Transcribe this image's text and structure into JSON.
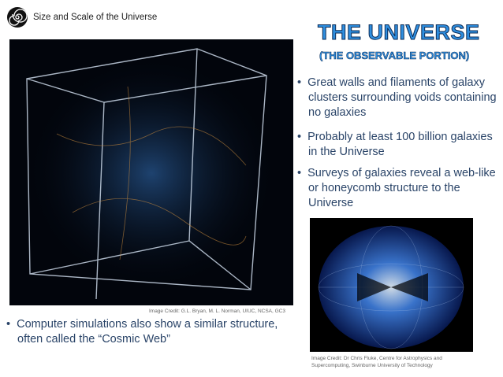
{
  "header": {
    "title": "Size and Scale of the Universe"
  },
  "title": "THE UNIVERSE",
  "subtitle": "(THE OBSERVABLE PORTION)",
  "right_bullets": [
    "Great walls and filaments of galaxy clusters surrounding voids containing no galaxies",
    "Probably at least 100 billion galaxies in the Universe",
    "Surveys of galaxies reveal a web-like or honeycomb structure to the Universe"
  ],
  "left_image": {
    "credit": "Image Credit: G.L. Bryan, M. L. Norman, UIUC, NCSA, GC3"
  },
  "left_bullet": "Computer simulations also show a similar structure, often called the “Cosmic Web”",
  "right_image": {
    "credit": "Image Credit: Dr Chris Fluke, Centre for Astrophysics and Supercomputing, Swinburne University of Technology"
  }
}
